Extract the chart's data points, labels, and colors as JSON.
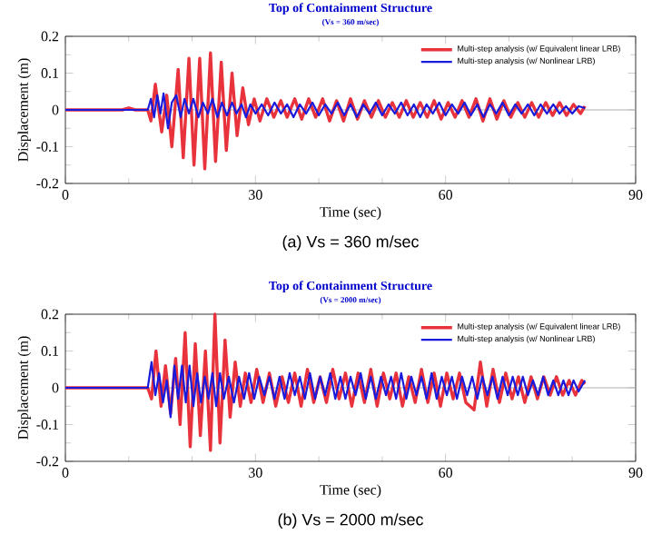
{
  "chart_data": [
    {
      "type": "line",
      "title": "Top of Containment Structure",
      "subtitle": "(Vs = 360 m/sec)",
      "xlabel": "Time (sec)",
      "ylabel": "Displacement (m)",
      "annotations": [
        "(a) Vs = 360 m/sec"
      ],
      "xlim": [
        0,
        90
      ],
      "xticks": [
        0,
        30,
        60,
        90
      ],
      "ylim": [
        -0.2,
        0.2
      ],
      "yticks": [
        -0.2,
        -0.1,
        0,
        0.1,
        0.2
      ],
      "legend": "top right",
      "ref_lines": [
        {
          "axis": "y",
          "value": 0,
          "color": "#b0b0b0"
        }
      ],
      "series": [
        {
          "name": "Multi-step analysis (w/ Equivalent linear LRB)",
          "color": "#e8323c",
          "x": [
            0,
            9,
            10,
            11,
            13,
            13.5,
            14.2,
            15.2,
            16.0,
            16.8,
            17.8,
            18.6,
            19.5,
            20.3,
            21.2,
            22.0,
            22.9,
            23.7,
            24.6,
            25.4,
            26.3,
            27.1,
            28.0,
            28.9,
            29.8,
            30.7,
            31.8,
            32.9,
            34,
            35,
            36.2,
            37.3,
            38.4,
            39.5,
            40.6,
            41.7,
            42.8,
            43.9,
            45,
            46.1,
            47.2,
            48.3,
            49.4,
            50.5,
            51.6,
            52.7,
            53.8,
            54.9,
            56,
            57.1,
            58.2,
            59.3,
            60.4,
            61.5,
            62.6,
            63.7,
            64.8,
            65.9,
            67,
            68.1,
            69.2,
            70.3,
            71.4,
            72.5,
            73.6,
            74.7,
            75.8,
            76.9,
            78,
            79.1,
            80.2,
            81.3,
            82
          ],
          "values": [
            0,
            0,
            0.005,
            0,
            0,
            -0.03,
            0.07,
            -0.06,
            0.04,
            -0.1,
            0.11,
            -0.13,
            0.14,
            -0.15,
            0.14,
            -0.16,
            0.155,
            -0.14,
            0.13,
            -0.11,
            0.1,
            -0.07,
            0.06,
            -0.04,
            0.03,
            -0.03,
            0.03,
            -0.02,
            0.025,
            -0.02,
            0.03,
            -0.025,
            0.03,
            -0.02,
            0.03,
            -0.03,
            0.025,
            -0.03,
            0.03,
            -0.025,
            0.025,
            -0.02,
            0.025,
            -0.02,
            0.02,
            -0.02,
            0.025,
            -0.02,
            0.02,
            -0.02,
            0.025,
            -0.025,
            0.02,
            -0.02,
            0.025,
            -0.02,
            0.03,
            -0.03,
            0.03,
            -0.025,
            0.025,
            -0.02,
            0.02,
            -0.02,
            0.02,
            -0.02,
            0.02,
            -0.015,
            0.02,
            -0.015,
            0.015,
            -0.01,
            0.01
          ]
        },
        {
          "name": "Multi-step analysis (w/ Nonlinear LRB)",
          "color": "#1a1adc",
          "x": [
            0,
            13,
            13.5,
            14,
            14.5,
            15,
            15.5,
            16.2,
            16.8,
            17.5,
            18.2,
            18.8,
            19.5,
            20.2,
            21,
            21.7,
            22.5,
            23.2,
            24,
            24.7,
            25.5,
            26.3,
            27,
            27.8,
            28.5,
            29.2,
            30,
            31,
            32,
            33,
            34,
            35,
            36,
            37,
            38,
            39,
            40,
            41,
            42,
            43,
            44,
            45,
            46,
            47,
            48,
            49,
            50,
            51,
            52,
            53,
            54,
            55,
            56,
            57,
            58,
            59,
            60,
            61,
            62,
            63,
            64,
            65,
            66,
            67,
            68,
            69,
            70,
            71,
            72,
            73,
            74,
            75,
            76,
            77,
            78,
            79,
            80,
            81,
            82
          ],
          "values": [
            0,
            0,
            0.03,
            -0.02,
            0.04,
            -0.01,
            0.045,
            -0.05,
            0.02,
            0.04,
            -0.02,
            0.03,
            -0.01,
            0.03,
            -0.02,
            0.02,
            -0.01,
            0.03,
            -0.02,
            0.02,
            -0.015,
            0.02,
            -0.01,
            0.015,
            -0.02,
            0.015,
            -0.01,
            0.015,
            -0.015,
            0.02,
            -0.01,
            0.015,
            -0.02,
            0.015,
            -0.01,
            0.02,
            -0.015,
            0.015,
            -0.01,
            0.02,
            -0.015,
            0.015,
            -0.02,
            0.015,
            -0.01,
            0.02,
            -0.015,
            0.015,
            -0.01,
            0.02,
            -0.015,
            0.015,
            -0.02,
            0.015,
            -0.01,
            0.02,
            -0.015,
            0.015,
            -0.01,
            0.02,
            -0.015,
            0.015,
            -0.02,
            0.015,
            -0.01,
            0.02,
            -0.015,
            0.015,
            -0.01,
            0.015,
            -0.015,
            0.015,
            -0.01,
            0.015,
            -0.01,
            0.01,
            -0.01,
            0.01,
            0.005
          ]
        }
      ]
    },
    {
      "type": "line",
      "title": "Top of Containment Structure",
      "subtitle": "(Vs = 2000 m/sec)",
      "xlabel": "Time (sec)",
      "ylabel": "Displacement (m)",
      "annotations": [
        "(b) Vs = 2000 m/sec"
      ],
      "xlim": [
        0,
        90
      ],
      "xticks": [
        0,
        30,
        60,
        90
      ],
      "ylim": [
        -0.2,
        0.2
      ],
      "yticks": [
        -0.2,
        -0.1,
        0,
        0.1,
        0.2
      ],
      "legend": "top right",
      "ref_lines": [
        {
          "axis": "y",
          "value": 0,
          "color": "#b0b0b0"
        }
      ],
      "series": [
        {
          "name": "Multi-step analysis (w/ Equivalent linear LRB)",
          "color": "#e8323c",
          "x": [
            0,
            13,
            13.6,
            14.3,
            15.1,
            15.8,
            16.6,
            17.4,
            18.1,
            18.9,
            19.7,
            20.5,
            21.3,
            22.1,
            22.9,
            23.6,
            24.4,
            25.2,
            26.0,
            26.8,
            27.6,
            28.4,
            29.3,
            30.2,
            31.2,
            32.2,
            33.2,
            34.2,
            35.2,
            36.2,
            37.2,
            38.2,
            39.2,
            40.2,
            41.2,
            42.2,
            43.2,
            44.2,
            45.2,
            46.2,
            47.2,
            48.2,
            49.2,
            50.2,
            51.2,
            52.2,
            53.2,
            54.2,
            55.2,
            56.2,
            57.2,
            58.2,
            59.2,
            60.2,
            61.2,
            62.2,
            63.2,
            64.5,
            65.5,
            66.5,
            67.5,
            68.5,
            69.5,
            70.5,
            71.5,
            72.5,
            73.5,
            74.5,
            75.5,
            76.5,
            77.5,
            78.5,
            79.5,
            80.5,
            81.5,
            82
          ],
          "values": [
            0,
            0,
            -0.03,
            0.1,
            -0.05,
            0.06,
            -0.07,
            0.08,
            -0.1,
            0.15,
            -0.16,
            0.12,
            -0.13,
            0.1,
            -0.17,
            0.2,
            -0.15,
            0.13,
            -0.08,
            0.07,
            -0.05,
            0.04,
            -0.04,
            0.05,
            -0.04,
            0.04,
            -0.05,
            0.03,
            -0.04,
            0.04,
            -0.05,
            0.05,
            -0.04,
            0.03,
            -0.04,
            0.05,
            -0.03,
            0.04,
            -0.05,
            0.04,
            -0.04,
            0.05,
            -0.05,
            0.04,
            -0.03,
            0.04,
            -0.05,
            0.03,
            -0.04,
            0.05,
            -0.04,
            0.04,
            -0.05,
            0.04,
            -0.03,
            0.04,
            -0.04,
            -0.06,
            0.07,
            -0.05,
            0.05,
            -0.04,
            0.04,
            -0.03,
            0.03,
            -0.04,
            0.03,
            -0.03,
            0.03,
            -0.02,
            0.03,
            -0.02,
            0.02,
            -0.02,
            0.02,
            0.01
          ]
        },
        {
          "name": "Multi-step analysis (w/ Nonlinear LRB)",
          "color": "#1a1adc",
          "x": [
            0,
            13,
            13.6,
            14.2,
            14.8,
            15.4,
            16.0,
            16.6,
            17.2,
            17.8,
            18.4,
            19.0,
            19.6,
            20.2,
            20.8,
            21.4,
            22.0,
            22.6,
            23.2,
            23.8,
            24.4,
            25.0,
            25.8,
            26.6,
            27.4,
            28.2,
            29.0,
            29.8,
            30.6,
            31.4,
            32.2,
            33.0,
            33.8,
            34.6,
            35.4,
            36.2,
            37.0,
            37.8,
            38.6,
            39.4,
            40.2,
            41.0,
            41.8,
            42.6,
            43.4,
            44.2,
            45.0,
            45.8,
            46.6,
            47.4,
            48.2,
            49.0,
            49.8,
            50.6,
            51.4,
            52.2,
            53.0,
            53.8,
            54.6,
            55.4,
            56.2,
            57.0,
            57.8,
            58.6,
            59.4,
            60.2,
            61.0,
            61.8,
            62.6,
            63.4,
            64.2,
            65.0,
            65.8,
            66.6,
            67.4,
            68.2,
            69.0,
            69.8,
            70.6,
            71.4,
            72.2,
            73.0,
            73.8,
            74.6,
            75.4,
            76.2,
            77.0,
            77.8,
            78.6,
            79.4,
            80.2,
            81.0,
            82
          ],
          "values": [
            0,
            0,
            0.07,
            -0.02,
            0.04,
            -0.04,
            0.02,
            -0.08,
            0.06,
            -0.03,
            0.06,
            -0.04,
            0.06,
            -0.05,
            0.04,
            -0.04,
            0.03,
            -0.03,
            0.04,
            -0.05,
            0.04,
            -0.03,
            0.03,
            -0.04,
            0.03,
            -0.03,
            0.04,
            -0.03,
            0.03,
            -0.02,
            0.03,
            -0.03,
            0.03,
            -0.03,
            0.04,
            -0.02,
            0.03,
            -0.03,
            0.04,
            -0.03,
            0.03,
            -0.02,
            0.04,
            -0.03,
            0.03,
            -0.03,
            0.03,
            -0.02,
            0.04,
            -0.03,
            0.03,
            -0.03,
            0.03,
            -0.02,
            0.03,
            -0.03,
            0.04,
            -0.03,
            0.03,
            -0.02,
            0.03,
            -0.03,
            0.04,
            -0.03,
            0.03,
            -0.02,
            0.03,
            -0.03,
            0.03,
            -0.02,
            0.03,
            -0.03,
            0.03,
            -0.02,
            0.03,
            -0.03,
            0.03,
            -0.02,
            0.03,
            -0.02,
            0.03,
            -0.02,
            0.02,
            -0.02,
            0.03,
            -0.02,
            0.02,
            -0.02,
            0.02,
            -0.02,
            0.02,
            -0.01,
            0.02
          ]
        }
      ]
    }
  ]
}
